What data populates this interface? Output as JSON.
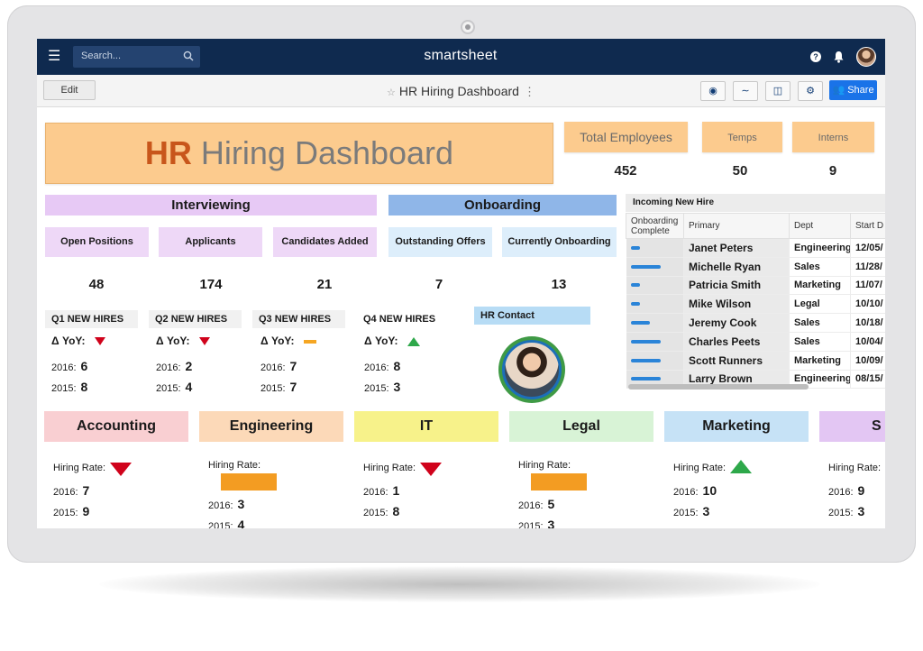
{
  "nav": {
    "search_placeholder": "Search...",
    "brand": "smartsheet"
  },
  "toolbar": {
    "edit_label": "Edit",
    "doc_title": "HR Hiring Dashboard",
    "share_label": "Share"
  },
  "dashboard": {
    "title_hr": "HR",
    "title_rest": " Hiring Dashboard",
    "kpis": [
      {
        "label": "Total Employees",
        "value": "452"
      },
      {
        "label": "Temps",
        "value": "50"
      },
      {
        "label": "Interns",
        "value": "9"
      }
    ],
    "sections": {
      "interviewing": "Interviewing",
      "onboarding": "Onboarding"
    },
    "metrics": [
      {
        "label": "Open Positions",
        "value": "48"
      },
      {
        "label": "Applicants",
        "value": "174"
      },
      {
        "label": "Candidates Added",
        "value": "21"
      },
      {
        "label": "Outstanding Offers",
        "value": "7"
      },
      {
        "label": "Currently Onboarding",
        "value": "13"
      }
    ],
    "quarters": [
      {
        "label": "Q1 NEW HIRES",
        "yoy": "Δ YoY:",
        "trend": "down",
        "y2016_label": "2016:",
        "y2016": "6",
        "y2015_label": "2015:",
        "y2015": "8"
      },
      {
        "label": "Q2 NEW HIRES",
        "yoy": "Δ YoY:",
        "trend": "down",
        "y2016_label": "2016:",
        "y2016": "2",
        "y2015_label": "2015:",
        "y2015": "4"
      },
      {
        "label": "Q3 NEW HIRES",
        "yoy": "Δ YoY:",
        "trend": "flat",
        "y2016_label": "2016:",
        "y2016": "7",
        "y2015_label": "2015:",
        "y2015": "7"
      },
      {
        "label": "Q4 NEW HIRES",
        "yoy": "Δ YoY:",
        "trend": "up",
        "y2016_label": "2016:",
        "y2016": "8",
        "y2015_label": "2015:",
        "y2015": "3"
      }
    ],
    "hr_contact": "HR Contact",
    "incoming": {
      "title": "Incoming New Hire",
      "headers": [
        "Onboarding Complete",
        "Primary",
        "Dept",
        "Start D"
      ],
      "rows": [
        {
          "progress": 0.25,
          "name": "Janet Peters",
          "dept": "Engineering",
          "start": "12/05/"
        },
        {
          "progress": 0.8,
          "name": "Michelle Ryan",
          "dept": "Sales",
          "start": "11/28/"
        },
        {
          "progress": 0.25,
          "name": "Patricia Smith",
          "dept": "Marketing",
          "start": "11/07/"
        },
        {
          "progress": 0.25,
          "name": "Mike Wilson",
          "dept": "Legal",
          "start": "10/10/"
        },
        {
          "progress": 0.5,
          "name": "Jeremy Cook",
          "dept": "Sales",
          "start": "10/18/"
        },
        {
          "progress": 0.8,
          "name": "Charles Peets",
          "dept": "Sales",
          "start": "10/04/"
        },
        {
          "progress": 0.8,
          "name": "Scott Runners",
          "dept": "Marketing",
          "start": "10/09/"
        },
        {
          "progress": 0.8,
          "name": "Larry Brown",
          "dept": "Engineering",
          "start": "08/15/"
        }
      ]
    },
    "departments": [
      {
        "name": "Accounting",
        "color": "#f9cfd2",
        "rate_label": "Hiring Rate:",
        "trend": "down",
        "y2016_label": "2016:",
        "y2016": "7",
        "y2015_label": "2015:",
        "y2015": "9"
      },
      {
        "name": "Engineering",
        "color": "#fcd9b8",
        "rate_label": "Hiring Rate:",
        "trend": "flat",
        "y2016_label": "2016:",
        "y2016": "3",
        "y2015_label": "2015:",
        "y2015": "4"
      },
      {
        "name": "IT",
        "color": "#f7f28a",
        "rate_label": "Hiring Rate:",
        "trend": "down",
        "y2016_label": "2016:",
        "y2016": "1",
        "y2015_label": "2015:",
        "y2015": "8"
      },
      {
        "name": "Legal",
        "color": "#d8f3d6",
        "rate_label": "Hiring Rate:",
        "trend": "flat",
        "y2016_label": "2016:",
        "y2016": "5",
        "y2015_label": "2015:",
        "y2015": "3"
      },
      {
        "name": "Marketing",
        "color": "#c6e2f6",
        "rate_label": "Hiring Rate:",
        "trend": "up",
        "y2016_label": "2016:",
        "y2016": "10",
        "y2015_label": "2015:",
        "y2015": "3"
      },
      {
        "name": "S",
        "color": "#e3c6f3",
        "rate_label": "Hiring Rate:",
        "trend": "none",
        "y2016_label": "2016:",
        "y2016": "9",
        "y2015_label": "2015:",
        "y2015": "3"
      }
    ],
    "colors": {
      "interviewing": "#e7c9f5",
      "interviewing_box": "#eed8f7",
      "onboarding": "#8fb6e8",
      "onboarding_box": "#ddeefb"
    }
  }
}
